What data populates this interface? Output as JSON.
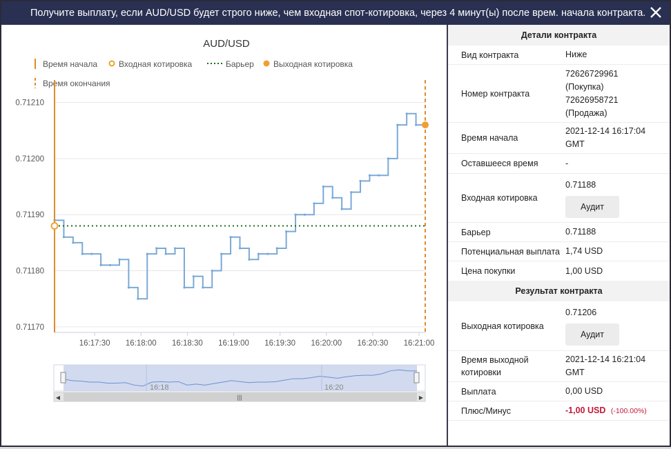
{
  "window": {
    "title": "Получите выплату, если AUD/USD будет строго ниже, чем входная спот-котировка, через 4 минут(ы) после врем. начала контракта.",
    "close_icon": "close-icon"
  },
  "chart": {
    "title": "AUD/USD",
    "legend": {
      "start_time": "Время начала",
      "entry_spot": "Входная котировка",
      "barrier": "Барьер",
      "exit_spot": "Выходная котировка",
      "end_time": "Время окончания"
    },
    "navigator": {
      "label_1": "16:18",
      "label_2": "16:20"
    },
    "colors": {
      "line": "#7aa9d6",
      "marker": "#f0a030",
      "start_line": "#e08a2a",
      "barrier": "#1a6a1a"
    }
  },
  "chart_data": {
    "type": "line",
    "title": "AUD/USD",
    "x": [
      "16:17:04",
      "16:17:10",
      "16:17:16",
      "16:17:22",
      "16:17:28",
      "16:17:34",
      "16:17:40",
      "16:17:46",
      "16:17:52",
      "16:17:58",
      "16:18:04",
      "16:18:10",
      "16:18:16",
      "16:18:22",
      "16:18:28",
      "16:18:34",
      "16:18:40",
      "16:18:46",
      "16:18:52",
      "16:18:58",
      "16:19:04",
      "16:19:10",
      "16:19:16",
      "16:19:22",
      "16:19:28",
      "16:19:34",
      "16:19:40",
      "16:19:46",
      "16:19:52",
      "16:19:58",
      "16:20:04",
      "16:20:10",
      "16:20:16",
      "16:20:22",
      "16:20:28",
      "16:20:34",
      "16:20:40",
      "16:20:46",
      "16:20:52",
      "16:20:58",
      "16:21:04"
    ],
    "series": [
      {
        "values": [
          0.71189,
          0.71186,
          0.71185,
          0.71183,
          0.71183,
          0.71181,
          0.71181,
          0.71182,
          0.71177,
          0.71175,
          0.71183,
          0.71184,
          0.71183,
          0.71184,
          0.71177,
          0.71179,
          0.71177,
          0.7118,
          0.71183,
          0.71186,
          0.71184,
          0.71182,
          0.71183,
          0.71183,
          0.71184,
          0.71187,
          0.7119,
          0.7119,
          0.71192,
          0.71195,
          0.71193,
          0.71191,
          0.71194,
          0.71196,
          0.71197,
          0.71197,
          0.712,
          0.71206,
          0.71208,
          0.71206,
          0.71206
        ]
      }
    ],
    "entry_spot": 0.71188,
    "exit_spot": 0.71206,
    "barrier": 0.71188,
    "ylim": [
      0.71169,
      0.71214
    ],
    "y_ticks": [
      "0.71170",
      "0.71180",
      "0.71190",
      "0.71200",
      "0.71210"
    ],
    "x_ticks": [
      "16:17:30",
      "16:18:00",
      "16:18:30",
      "16:19:00",
      "16:19:30",
      "16:20:00",
      "16:20:30",
      "16:21:00"
    ],
    "grid": true
  },
  "details": {
    "header": "Детали контракта",
    "rows": {
      "type_label": "Вид контракта",
      "type_value": "Ниже",
      "number_label": "Номер контракта",
      "number_buy": "72626729961",
      "number_buy_note": "(Покупка)",
      "number_sell": "72626958721",
      "number_sell_note": "(Продажа)",
      "start_label": "Время начала",
      "start_value_1": "2021-12-14 16:17:04",
      "start_value_2": "GMT",
      "remaining_label": "Оставшееся время",
      "remaining_value": "-",
      "entry_label": "Входная котировка",
      "entry_value": "0.71188",
      "audit": "Аудит",
      "barrier_label": "Барьер",
      "barrier_value": "0.71188",
      "payout_label": "Потенциальная выплата",
      "payout_value": "1,74 USD",
      "price_label": "Цена покупки",
      "price_value": "1,00 USD"
    },
    "result_header": "Результат контракта",
    "result": {
      "exit_label": "Выходная котировка",
      "exit_value": "0.71206",
      "audit": "Аудит",
      "exit_time_label_1": "Время выходной",
      "exit_time_label_2": "котировки",
      "exit_time_value_1": "2021-12-14 16:21:04",
      "exit_time_value_2": "GMT",
      "payment_label": "Выплата",
      "payment_value": "0,00 USD",
      "pl_label": "Плюс/Минус",
      "pl_value": "-1,00 USD",
      "pl_percent": "(-100.00%)"
    }
  }
}
